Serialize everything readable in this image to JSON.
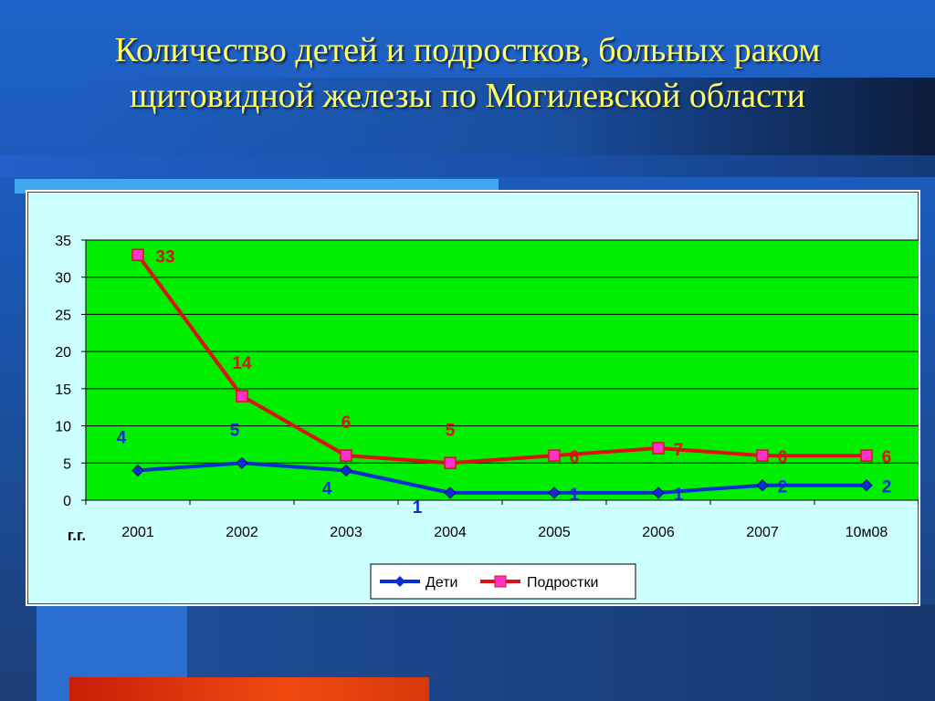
{
  "title_line1": "Количество детей и подростков, больных раком",
  "title_line2": "щитовидной железы по Могилевской области",
  "colors": {
    "plot_bg": "#00ee00",
    "panel_bg": "#ccffff",
    "series_children": "#0a2fd0",
    "series_teens": "#dd1111",
    "teens_marker": "#ff33cc",
    "title": "#ffff66"
  },
  "chart_data": {
    "type": "line",
    "x_axis_caption": "г.г.",
    "categories": [
      "2001",
      "2002",
      "2003",
      "2004",
      "2005",
      "2006",
      "2007",
      "10м08"
    ],
    "ylim": [
      0,
      35
    ],
    "yticks": [
      0,
      5,
      10,
      15,
      20,
      25,
      30,
      35
    ],
    "grid": true,
    "legend": "bottom",
    "series": [
      {
        "name": "Дети",
        "values": [
          4,
          5,
          4,
          1,
          1,
          1,
          2,
          2
        ],
        "marker": "diamond"
      },
      {
        "name": "Подростки",
        "values": [
          33,
          14,
          6,
          5,
          6,
          7,
          6,
          6
        ],
        "marker": "square"
      }
    ]
  }
}
